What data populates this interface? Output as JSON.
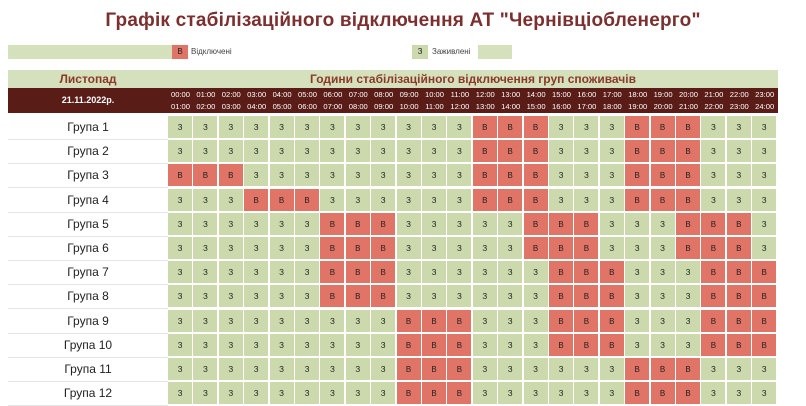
{
  "title": "Графік стабілізаційного відключення АТ \"Чернівціобленерго\"",
  "legend": {
    "off_code": "В",
    "off_label": "Відключені",
    "on_code": "З",
    "on_label": "Заживлені"
  },
  "colors": {
    "off": "#e07466",
    "on": "#cbd9ad",
    "header_band": "#5a1c16",
    "accent_text": "#8b3a2a"
  },
  "month_label": "Листопад",
  "hours_header": "Години стабілізаційного відключення груп споживачів",
  "date": "21.11.2022р.",
  "hours": [
    {
      "from": "00:00",
      "to": "01:00"
    },
    {
      "from": "01:00",
      "to": "02:00"
    },
    {
      "from": "02:00",
      "to": "03:00"
    },
    {
      "from": "03:00",
      "to": "04:00"
    },
    {
      "from": "04:00",
      "to": "05:00"
    },
    {
      "from": "05:00",
      "to": "06:00"
    },
    {
      "from": "06:00",
      "to": "07:00"
    },
    {
      "from": "07:00",
      "to": "08:00"
    },
    {
      "from": "08:00",
      "to": "09:00"
    },
    {
      "from": "09:00",
      "to": "10:00"
    },
    {
      "from": "10:00",
      "to": "11:00"
    },
    {
      "from": "11:00",
      "to": "12:00"
    },
    {
      "from": "12:00",
      "to": "13:00"
    },
    {
      "from": "13:00",
      "to": "14:00"
    },
    {
      "from": "14:00",
      "to": "15:00"
    },
    {
      "from": "15:00",
      "to": "16:00"
    },
    {
      "from": "16:00",
      "to": "17:00"
    },
    {
      "from": "17:00",
      "to": "18:00"
    },
    {
      "from": "18:00",
      "to": "19:00"
    },
    {
      "from": "19:00",
      "to": "20:00"
    },
    {
      "from": "20:00",
      "to": "21:00"
    },
    {
      "from": "21:00",
      "to": "22:00"
    },
    {
      "from": "22:00",
      "to": "23:00"
    },
    {
      "from": "23:00",
      "to": "24:00"
    }
  ],
  "groups": [
    {
      "name": "Група 1",
      "states": [
        "З",
        "З",
        "З",
        "З",
        "З",
        "З",
        "З",
        "З",
        "З",
        "З",
        "З",
        "З",
        "В",
        "В",
        "В",
        "З",
        "З",
        "З",
        "В",
        "В",
        "В",
        "З",
        "З",
        "З"
      ]
    },
    {
      "name": "Група 2",
      "states": [
        "З",
        "З",
        "З",
        "З",
        "З",
        "З",
        "З",
        "З",
        "З",
        "З",
        "З",
        "З",
        "В",
        "В",
        "В",
        "З",
        "З",
        "З",
        "В",
        "В",
        "В",
        "З",
        "З",
        "З"
      ]
    },
    {
      "name": "Група 3",
      "states": [
        "В",
        "В",
        "В",
        "З",
        "З",
        "З",
        "З",
        "З",
        "З",
        "З",
        "З",
        "З",
        "В",
        "В",
        "В",
        "З",
        "З",
        "З",
        "В",
        "В",
        "В",
        "З",
        "З",
        "З"
      ]
    },
    {
      "name": "Група 4",
      "states": [
        "З",
        "З",
        "З",
        "В",
        "В",
        "В",
        "З",
        "З",
        "З",
        "З",
        "З",
        "З",
        "В",
        "В",
        "В",
        "З",
        "З",
        "З",
        "В",
        "В",
        "В",
        "З",
        "З",
        "З"
      ]
    },
    {
      "name": "Група 5",
      "states": [
        "З",
        "З",
        "З",
        "З",
        "З",
        "З",
        "В",
        "В",
        "В",
        "З",
        "З",
        "З",
        "З",
        "З",
        "В",
        "В",
        "В",
        "З",
        "З",
        "З",
        "В",
        "В",
        "В",
        "З"
      ]
    },
    {
      "name": "Група 6",
      "states": [
        "З",
        "З",
        "З",
        "З",
        "З",
        "З",
        "В",
        "В",
        "В",
        "З",
        "З",
        "З",
        "З",
        "З",
        "В",
        "В",
        "В",
        "З",
        "З",
        "З",
        "В",
        "В",
        "В",
        "З"
      ]
    },
    {
      "name": "Група 7",
      "states": [
        "З",
        "З",
        "З",
        "З",
        "З",
        "З",
        "В",
        "В",
        "В",
        "З",
        "З",
        "З",
        "З",
        "З",
        "З",
        "В",
        "В",
        "В",
        "З",
        "З",
        "З",
        "В",
        "В",
        "В"
      ]
    },
    {
      "name": "Група 8",
      "states": [
        "З",
        "З",
        "З",
        "З",
        "З",
        "З",
        "В",
        "В",
        "В",
        "З",
        "З",
        "З",
        "З",
        "З",
        "З",
        "В",
        "В",
        "В",
        "З",
        "З",
        "З",
        "В",
        "В",
        "В"
      ]
    },
    {
      "name": "Група 9",
      "states": [
        "З",
        "З",
        "З",
        "З",
        "З",
        "З",
        "З",
        "З",
        "З",
        "В",
        "В",
        "В",
        "З",
        "З",
        "З",
        "В",
        "В",
        "В",
        "З",
        "З",
        "З",
        "В",
        "В",
        "В"
      ]
    },
    {
      "name": "Група 10",
      "states": [
        "З",
        "З",
        "З",
        "З",
        "З",
        "З",
        "З",
        "З",
        "З",
        "В",
        "В",
        "В",
        "З",
        "З",
        "З",
        "В",
        "В",
        "В",
        "З",
        "З",
        "З",
        "В",
        "В",
        "В"
      ]
    },
    {
      "name": "Група 11",
      "states": [
        "З",
        "З",
        "З",
        "З",
        "З",
        "З",
        "З",
        "З",
        "З",
        "В",
        "В",
        "В",
        "З",
        "З",
        "З",
        "З",
        "З",
        "З",
        "В",
        "В",
        "В",
        "З",
        "З",
        "З"
      ]
    },
    {
      "name": "Група 12",
      "states": [
        "З",
        "З",
        "З",
        "З",
        "З",
        "З",
        "З",
        "З",
        "З",
        "В",
        "В",
        "В",
        "З",
        "З",
        "З",
        "З",
        "З",
        "З",
        "В",
        "В",
        "В",
        "З",
        "З",
        "З"
      ]
    }
  ]
}
